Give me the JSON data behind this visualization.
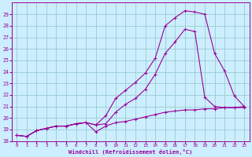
{
  "bg_color": "#cceeff",
  "line_color": "#990099",
  "grid_color": "#99cccc",
  "xlim": [
    -0.5,
    23.5
  ],
  "ylim": [
    18,
    30
  ],
  "yticks": [
    18,
    19,
    20,
    21,
    22,
    23,
    24,
    25,
    26,
    27,
    28,
    29
  ],
  "xticks": [
    0,
    1,
    2,
    3,
    4,
    5,
    6,
    7,
    8,
    9,
    10,
    11,
    12,
    13,
    14,
    15,
    16,
    17,
    18,
    19,
    20,
    21,
    22,
    23
  ],
  "xlabel": "Windchill (Refroidissement éolien,°C)",
  "series1_x": [
    0,
    1,
    2,
    3,
    4,
    5,
    6,
    7,
    8,
    9,
    10,
    11,
    12,
    13,
    14,
    15,
    16,
    17,
    18,
    19,
    20,
    21,
    22,
    23
  ],
  "series1_y": [
    18.5,
    18.4,
    18.9,
    19.1,
    19.3,
    19.3,
    19.5,
    19.6,
    19.4,
    20.2,
    21.7,
    22.4,
    23.1,
    23.9,
    25.2,
    28.0,
    28.7,
    29.3,
    29.2,
    29.0,
    25.6,
    24.1,
    21.9,
    21.0
  ],
  "series2_x": [
    0,
    1,
    2,
    3,
    4,
    5,
    6,
    7,
    8,
    9,
    10,
    11,
    12,
    13,
    14,
    15,
    16,
    17,
    18,
    19,
    20,
    21,
    22,
    23
  ],
  "series2_y": [
    18.5,
    18.4,
    18.9,
    19.1,
    19.3,
    19.3,
    19.5,
    19.6,
    19.4,
    19.5,
    20.5,
    21.2,
    21.7,
    22.5,
    23.8,
    25.6,
    26.6,
    27.7,
    27.5,
    21.8,
    21.0,
    20.9,
    20.9,
    20.9
  ],
  "series3_x": [
    0,
    1,
    2,
    3,
    4,
    5,
    6,
    7,
    8,
    9,
    10,
    11,
    12,
    13,
    14,
    15,
    16,
    17,
    18,
    19,
    20,
    21,
    22,
    23
  ],
  "series3_y": [
    18.5,
    18.4,
    18.9,
    19.1,
    19.3,
    19.3,
    19.5,
    19.6,
    18.8,
    19.3,
    19.6,
    19.7,
    19.9,
    20.1,
    20.3,
    20.5,
    20.6,
    20.7,
    20.7,
    20.8,
    20.8,
    20.9,
    20.9,
    21.0
  ]
}
